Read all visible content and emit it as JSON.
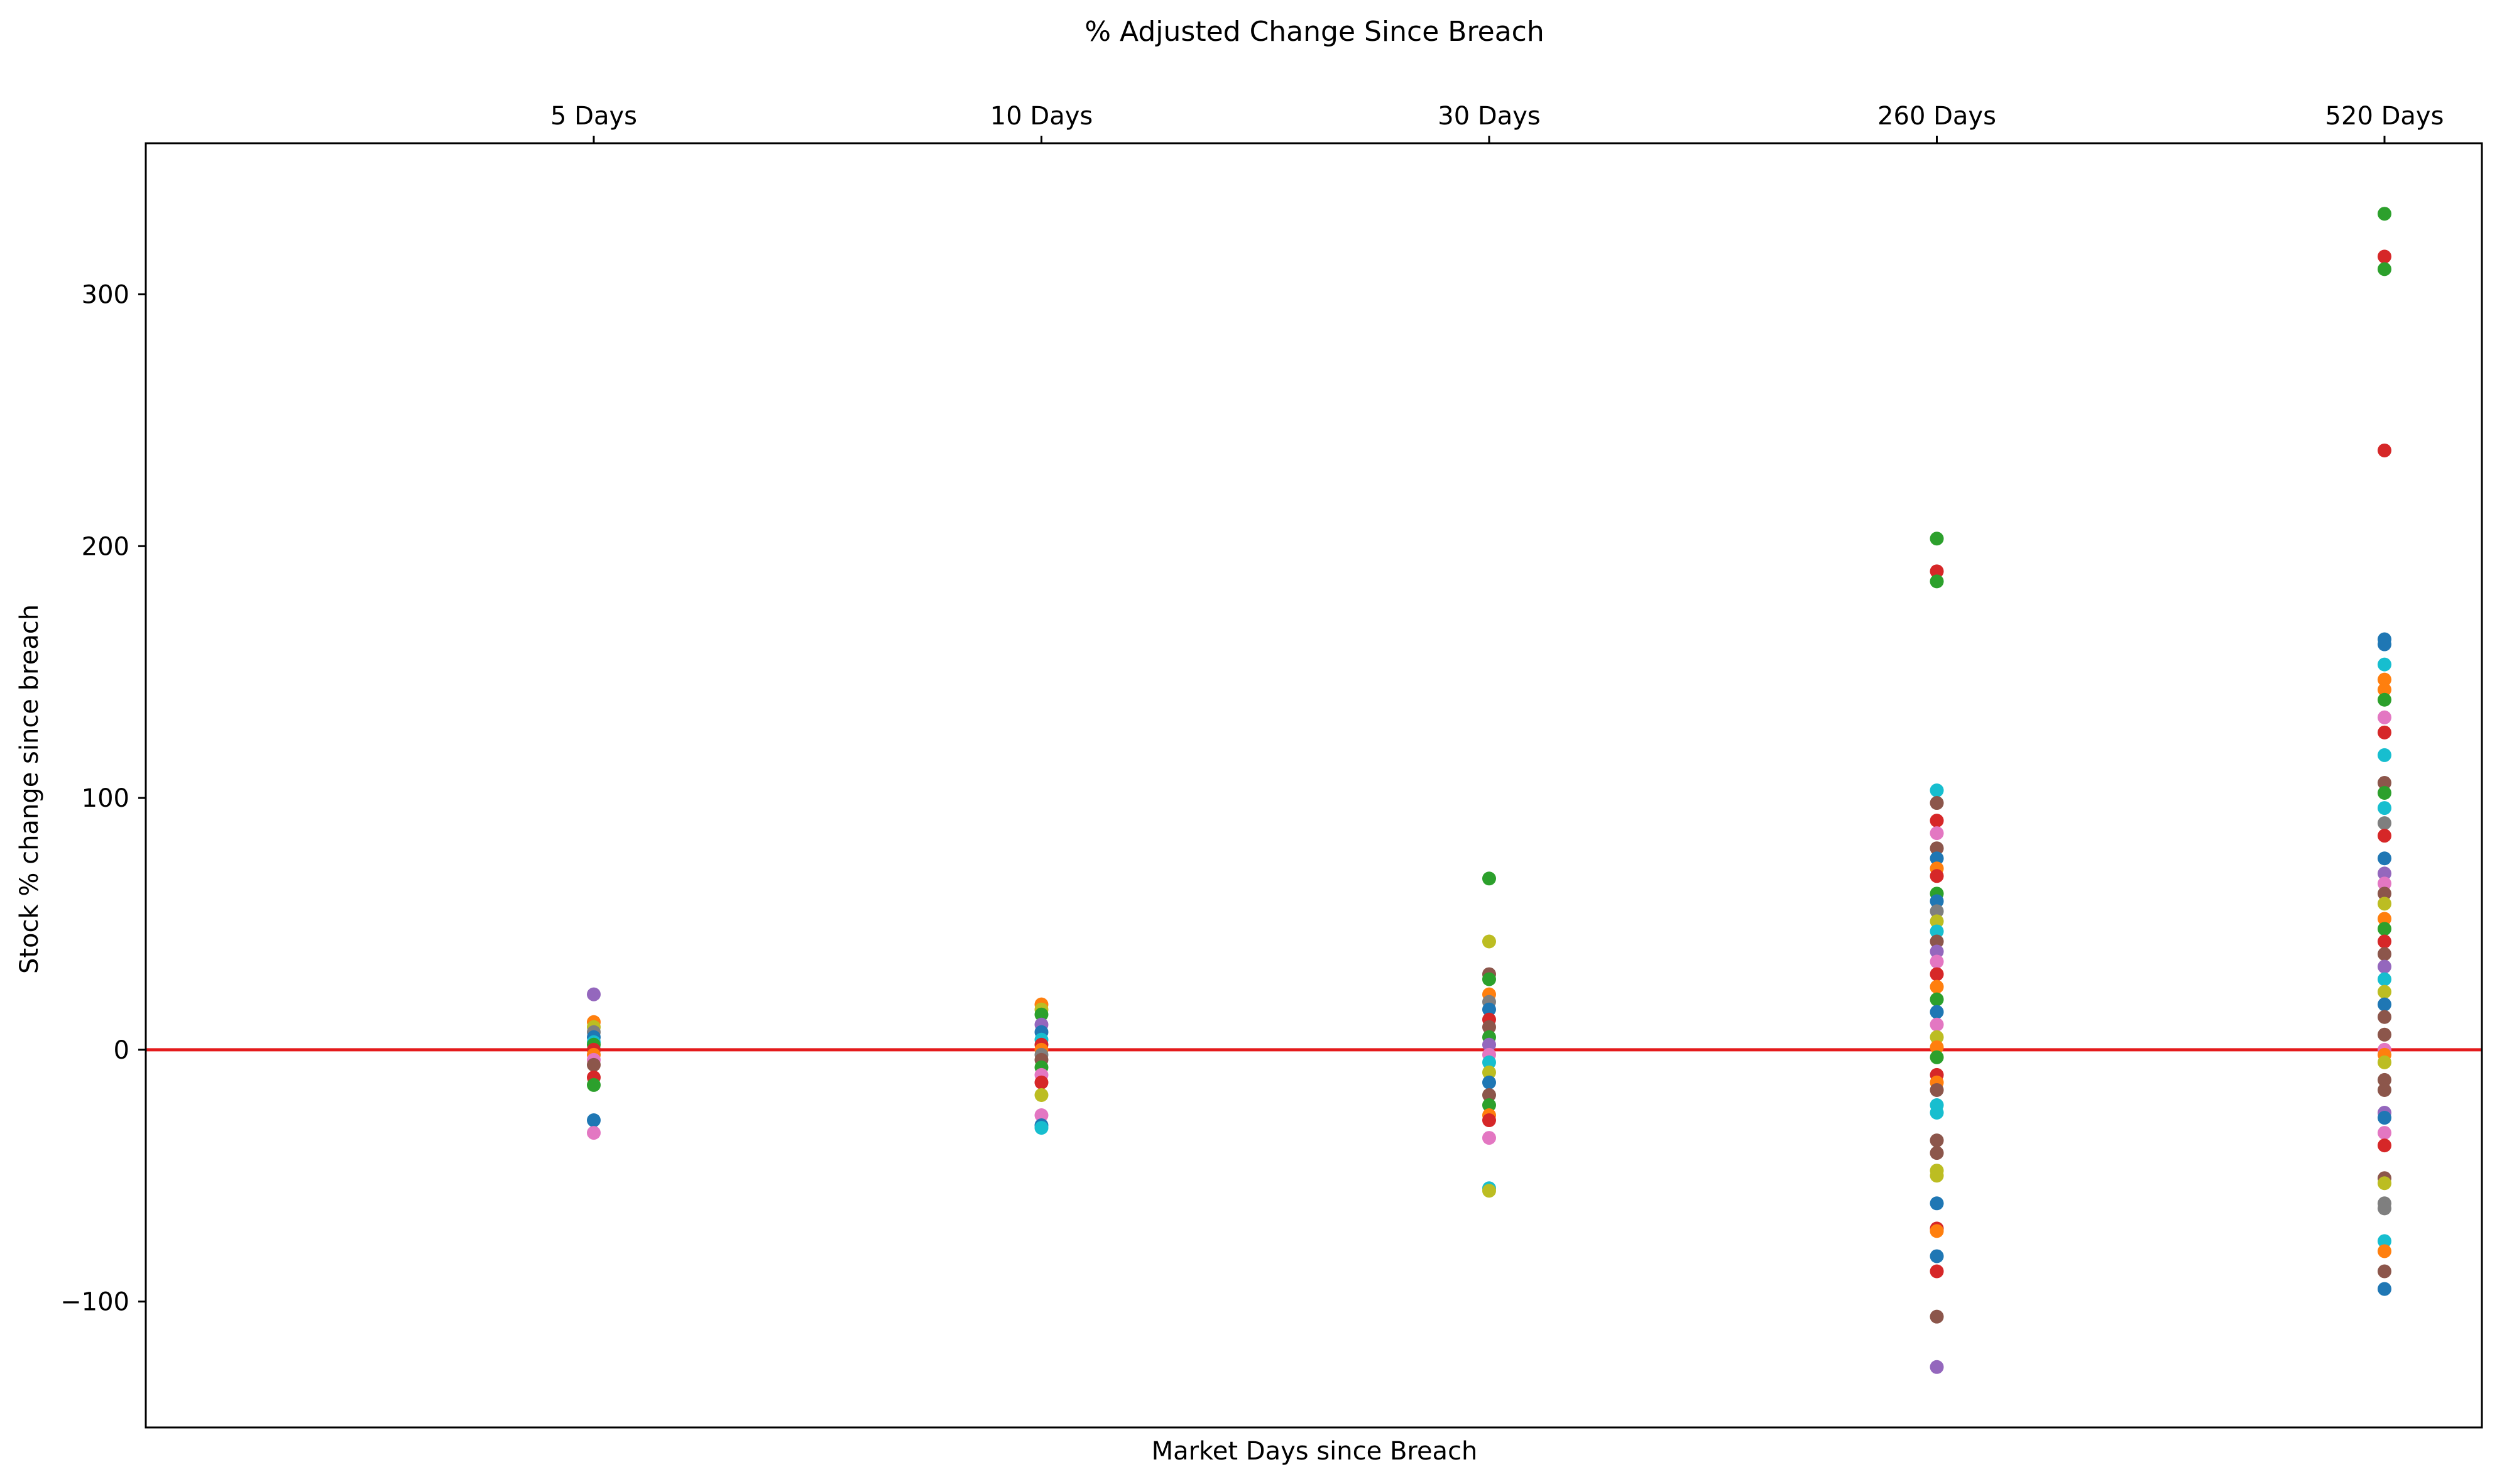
{
  "chart_data": {
    "type": "scatter",
    "title": "% Adjusted Change Since Breach",
    "xlabel": "Market Days since Breach",
    "ylabel": "Stock % change since breach",
    "categories": [
      "5 Days",
      "10 Days",
      "30 Days",
      "260 Days",
      "520 Days"
    ],
    "ylim": [
      -150,
      360
    ],
    "yticks": [
      -100,
      0,
      100,
      200,
      300
    ],
    "ytick_labels": [
      "−100",
      "0",
      "100",
      "200",
      "300"
    ],
    "grid": false,
    "legend": "none",
    "reference_line": {
      "y": 0,
      "color": "#e41a1c"
    },
    "palette": [
      "#1f77b4",
      "#ff7f0e",
      "#2ca02c",
      "#d62728",
      "#9467bd",
      "#8c564b",
      "#e377c2",
      "#7f7f7f",
      "#bcbd22",
      "#17becf"
    ],
    "points": [
      {
        "x": "5 Days",
        "y": 22,
        "color": "#9467bd"
      },
      {
        "x": "5 Days",
        "y": 11,
        "color": "#ff7f0e"
      },
      {
        "x": "5 Days",
        "y": 9,
        "color": "#bcbd22"
      },
      {
        "x": "5 Days",
        "y": 7,
        "color": "#7f7f7f"
      },
      {
        "x": "5 Days",
        "y": 5,
        "color": "#1f77b4"
      },
      {
        "x": "5 Days",
        "y": 3,
        "color": "#17becf"
      },
      {
        "x": "5 Days",
        "y": 2,
        "color": "#2ca02c"
      },
      {
        "x": "5 Days",
        "y": 0,
        "color": "#d62728"
      },
      {
        "x": "5 Days",
        "y": -2,
        "color": "#ff7f0e"
      },
      {
        "x": "5 Days",
        "y": -4,
        "color": "#e377c2"
      },
      {
        "x": "5 Days",
        "y": -6,
        "color": "#8c564b"
      },
      {
        "x": "5 Days",
        "y": -11,
        "color": "#d62728"
      },
      {
        "x": "5 Days",
        "y": -14,
        "color": "#2ca02c"
      },
      {
        "x": "5 Days",
        "y": -28,
        "color": "#1f77b4"
      },
      {
        "x": "5 Days",
        "y": -33,
        "color": "#e377c2"
      },
      {
        "x": "10 Days",
        "y": 18,
        "color": "#ff7f0e"
      },
      {
        "x": "10 Days",
        "y": 16,
        "color": "#bcbd22"
      },
      {
        "x": "10 Days",
        "y": 14,
        "color": "#2ca02c"
      },
      {
        "x": "10 Days",
        "y": 10,
        "color": "#9467bd"
      },
      {
        "x": "10 Days",
        "y": 7,
        "color": "#1f77b4"
      },
      {
        "x": "10 Days",
        "y": 4,
        "color": "#17becf"
      },
      {
        "x": "10 Days",
        "y": 2,
        "color": "#d62728"
      },
      {
        "x": "10 Days",
        "y": 0,
        "color": "#ff7f0e"
      },
      {
        "x": "10 Days",
        "y": -2,
        "color": "#7f7f7f"
      },
      {
        "x": "10 Days",
        "y": -4,
        "color": "#8c564b"
      },
      {
        "x": "10 Days",
        "y": -7,
        "color": "#2ca02c"
      },
      {
        "x": "10 Days",
        "y": -10,
        "color": "#e377c2"
      },
      {
        "x": "10 Days",
        "y": -13,
        "color": "#d62728"
      },
      {
        "x": "10 Days",
        "y": -18,
        "color": "#bcbd22"
      },
      {
        "x": "10 Days",
        "y": -26,
        "color": "#e377c2"
      },
      {
        "x": "10 Days",
        "y": -30,
        "color": "#1f77b4"
      },
      {
        "x": "10 Days",
        "y": -31,
        "color": "#17becf"
      },
      {
        "x": "30 Days",
        "y": 68,
        "color": "#2ca02c"
      },
      {
        "x": "30 Days",
        "y": 43,
        "color": "#bcbd22"
      },
      {
        "x": "30 Days",
        "y": 30,
        "color": "#8c564b"
      },
      {
        "x": "30 Days",
        "y": 28,
        "color": "#2ca02c"
      },
      {
        "x": "30 Days",
        "y": 22,
        "color": "#ff7f0e"
      },
      {
        "x": "30 Days",
        "y": 19,
        "color": "#7f7f7f"
      },
      {
        "x": "30 Days",
        "y": 16,
        "color": "#1f77b4"
      },
      {
        "x": "30 Days",
        "y": 12,
        "color": "#d62728"
      },
      {
        "x": "30 Days",
        "y": 9,
        "color": "#8c564b"
      },
      {
        "x": "30 Days",
        "y": 5,
        "color": "#2ca02c"
      },
      {
        "x": "30 Days",
        "y": 2,
        "color": "#9467bd"
      },
      {
        "x": "30 Days",
        "y": -2,
        "color": "#e377c2"
      },
      {
        "x": "30 Days",
        "y": -5,
        "color": "#17becf"
      },
      {
        "x": "30 Days",
        "y": -9,
        "color": "#bcbd22"
      },
      {
        "x": "30 Days",
        "y": -13,
        "color": "#1f77b4"
      },
      {
        "x": "30 Days",
        "y": -18,
        "color": "#8c564b"
      },
      {
        "x": "30 Days",
        "y": -22,
        "color": "#2ca02c"
      },
      {
        "x": "30 Days",
        "y": -26,
        "color": "#ff7f0e"
      },
      {
        "x": "30 Days",
        "y": -28,
        "color": "#d62728"
      },
      {
        "x": "30 Days",
        "y": -35,
        "color": "#e377c2"
      },
      {
        "x": "30 Days",
        "y": -55,
        "color": "#17becf"
      },
      {
        "x": "30 Days",
        "y": -56,
        "color": "#bcbd22"
      },
      {
        "x": "260 Days",
        "y": 203,
        "color": "#2ca02c"
      },
      {
        "x": "260 Days",
        "y": 190,
        "color": "#d62728"
      },
      {
        "x": "260 Days",
        "y": 186,
        "color": "#2ca02c"
      },
      {
        "x": "260 Days",
        "y": 103,
        "color": "#17becf"
      },
      {
        "x": "260 Days",
        "y": 98,
        "color": "#8c564b"
      },
      {
        "x": "260 Days",
        "y": 91,
        "color": "#d62728"
      },
      {
        "x": "260 Days",
        "y": 86,
        "color": "#e377c2"
      },
      {
        "x": "260 Days",
        "y": 80,
        "color": "#8c564b"
      },
      {
        "x": "260 Days",
        "y": 76,
        "color": "#1f77b4"
      },
      {
        "x": "260 Days",
        "y": 72,
        "color": "#ff7f0e"
      },
      {
        "x": "260 Days",
        "y": 69,
        "color": "#d62728"
      },
      {
        "x": "260 Days",
        "y": 62,
        "color": "#2ca02c"
      },
      {
        "x": "260 Days",
        "y": 59,
        "color": "#1f77b4"
      },
      {
        "x": "260 Days",
        "y": 55,
        "color": "#7f7f7f"
      },
      {
        "x": "260 Days",
        "y": 51,
        "color": "#bcbd22"
      },
      {
        "x": "260 Days",
        "y": 47,
        "color": "#17becf"
      },
      {
        "x": "260 Days",
        "y": 43,
        "color": "#8c564b"
      },
      {
        "x": "260 Days",
        "y": 39,
        "color": "#9467bd"
      },
      {
        "x": "260 Days",
        "y": 35,
        "color": "#e377c2"
      },
      {
        "x": "260 Days",
        "y": 30,
        "color": "#d62728"
      },
      {
        "x": "260 Days",
        "y": 25,
        "color": "#ff7f0e"
      },
      {
        "x": "260 Days",
        "y": 20,
        "color": "#2ca02c"
      },
      {
        "x": "260 Days",
        "y": 15,
        "color": "#1f77b4"
      },
      {
        "x": "260 Days",
        "y": 10,
        "color": "#e377c2"
      },
      {
        "x": "260 Days",
        "y": 5,
        "color": "#bcbd22"
      },
      {
        "x": "260 Days",
        "y": 1,
        "color": "#ff7f0e"
      },
      {
        "x": "260 Days",
        "y": -3,
        "color": "#2ca02c"
      },
      {
        "x": "260 Days",
        "y": -10,
        "color": "#d62728"
      },
      {
        "x": "260 Days",
        "y": -13,
        "color": "#ff7f0e"
      },
      {
        "x": "260 Days",
        "y": -16,
        "color": "#8c564b"
      },
      {
        "x": "260 Days",
        "y": -22,
        "color": "#17becf"
      },
      {
        "x": "260 Days",
        "y": -25,
        "color": "#17becf"
      },
      {
        "x": "260 Days",
        "y": -36,
        "color": "#8c564b"
      },
      {
        "x": "260 Days",
        "y": -41,
        "color": "#8c564b"
      },
      {
        "x": "260 Days",
        "y": -48,
        "color": "#bcbd22"
      },
      {
        "x": "260 Days",
        "y": -50,
        "color": "#bcbd22"
      },
      {
        "x": "260 Days",
        "y": -61,
        "color": "#1f77b4"
      },
      {
        "x": "260 Days",
        "y": -71,
        "color": "#d62728"
      },
      {
        "x": "260 Days",
        "y": -72,
        "color": "#ff7f0e"
      },
      {
        "x": "260 Days",
        "y": -82,
        "color": "#1f77b4"
      },
      {
        "x": "260 Days",
        "y": -88,
        "color": "#d62728"
      },
      {
        "x": "260 Days",
        "y": -106,
        "color": "#8c564b"
      },
      {
        "x": "260 Days",
        "y": -126,
        "color": "#9467bd"
      },
      {
        "x": "520 Days",
        "y": 332,
        "color": "#2ca02c"
      },
      {
        "x": "520 Days",
        "y": 315,
        "color": "#d62728"
      },
      {
        "x": "520 Days",
        "y": 310,
        "color": "#2ca02c"
      },
      {
        "x": "520 Days",
        "y": 238,
        "color": "#d62728"
      },
      {
        "x": "520 Days",
        "y": 163,
        "color": "#1f77b4"
      },
      {
        "x": "520 Days",
        "y": 161,
        "color": "#1f77b4"
      },
      {
        "x": "520 Days",
        "y": 153,
        "color": "#17becf"
      },
      {
        "x": "520 Days",
        "y": 147,
        "color": "#ff7f0e"
      },
      {
        "x": "520 Days",
        "y": 143,
        "color": "#ff7f0e"
      },
      {
        "x": "520 Days",
        "y": 139,
        "color": "#2ca02c"
      },
      {
        "x": "520 Days",
        "y": 132,
        "color": "#e377c2"
      },
      {
        "x": "520 Days",
        "y": 126,
        "color": "#d62728"
      },
      {
        "x": "520 Days",
        "y": 117,
        "color": "#17becf"
      },
      {
        "x": "520 Days",
        "y": 106,
        "color": "#8c564b"
      },
      {
        "x": "520 Days",
        "y": 102,
        "color": "#2ca02c"
      },
      {
        "x": "520 Days",
        "y": 96,
        "color": "#17becf"
      },
      {
        "x": "520 Days",
        "y": 90,
        "color": "#7f7f7f"
      },
      {
        "x": "520 Days",
        "y": 85,
        "color": "#d62728"
      },
      {
        "x": "520 Days",
        "y": 76,
        "color": "#1f77b4"
      },
      {
        "x": "520 Days",
        "y": 70,
        "color": "#9467bd"
      },
      {
        "x": "520 Days",
        "y": 66,
        "color": "#e377c2"
      },
      {
        "x": "520 Days",
        "y": 62,
        "color": "#8c564b"
      },
      {
        "x": "520 Days",
        "y": 58,
        "color": "#bcbd22"
      },
      {
        "x": "520 Days",
        "y": 52,
        "color": "#ff7f0e"
      },
      {
        "x": "520 Days",
        "y": 48,
        "color": "#2ca02c"
      },
      {
        "x": "520 Days",
        "y": 43,
        "color": "#d62728"
      },
      {
        "x": "520 Days",
        "y": 38,
        "color": "#8c564b"
      },
      {
        "x": "520 Days",
        "y": 33,
        "color": "#9467bd"
      },
      {
        "x": "520 Days",
        "y": 28,
        "color": "#17becf"
      },
      {
        "x": "520 Days",
        "y": 23,
        "color": "#bcbd22"
      },
      {
        "x": "520 Days",
        "y": 18,
        "color": "#1f77b4"
      },
      {
        "x": "520 Days",
        "y": 13,
        "color": "#8c564b"
      },
      {
        "x": "520 Days",
        "y": 6,
        "color": "#8c564b"
      },
      {
        "x": "520 Days",
        "y": 0,
        "color": "#e377c2"
      },
      {
        "x": "520 Days",
        "y": -2,
        "color": "#ff7f0e"
      },
      {
        "x": "520 Days",
        "y": -5,
        "color": "#bcbd22"
      },
      {
        "x": "520 Days",
        "y": -12,
        "color": "#8c564b"
      },
      {
        "x": "520 Days",
        "y": -16,
        "color": "#8c564b"
      },
      {
        "x": "520 Days",
        "y": -25,
        "color": "#9467bd"
      },
      {
        "x": "520 Days",
        "y": -27,
        "color": "#1f77b4"
      },
      {
        "x": "520 Days",
        "y": -33,
        "color": "#e377c2"
      },
      {
        "x": "520 Days",
        "y": -38,
        "color": "#d62728"
      },
      {
        "x": "520 Days",
        "y": -51,
        "color": "#8c564b"
      },
      {
        "x": "520 Days",
        "y": -53,
        "color": "#bcbd22"
      },
      {
        "x": "520 Days",
        "y": -61,
        "color": "#7f7f7f"
      },
      {
        "x": "520 Days",
        "y": -63,
        "color": "#7f7f7f"
      },
      {
        "x": "520 Days",
        "y": -76,
        "color": "#17becf"
      },
      {
        "x": "520 Days",
        "y": -80,
        "color": "#ff7f0e"
      },
      {
        "x": "520 Days",
        "y": -88,
        "color": "#8c564b"
      },
      {
        "x": "520 Days",
        "y": -95,
        "color": "#1f77b4"
      }
    ]
  }
}
